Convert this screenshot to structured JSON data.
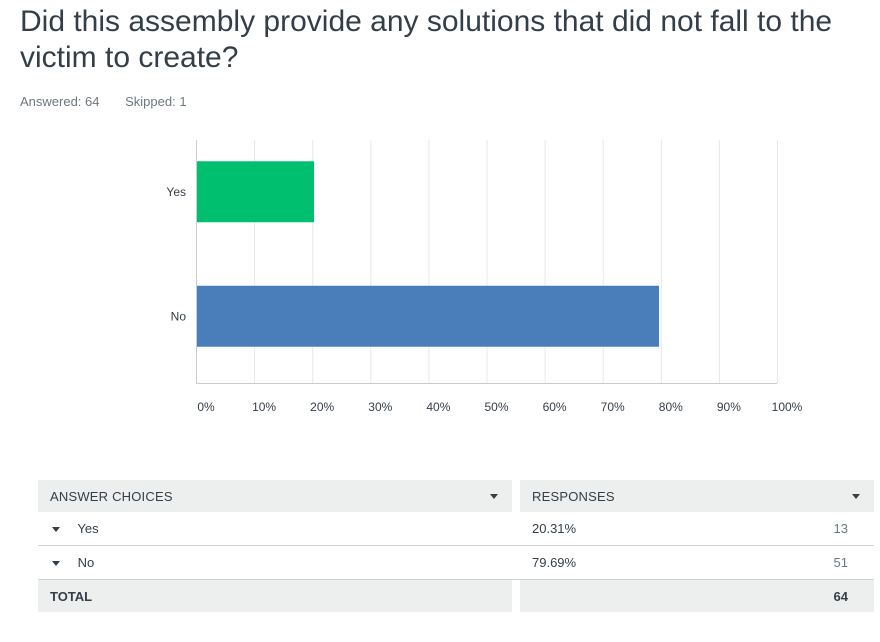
{
  "question": {
    "title": "Did this assembly provide any solutions that did not fall to the victim to create?",
    "answered_label": "Answered: 64",
    "skipped_label": "Skipped: 1"
  },
  "chart_data": {
    "type": "bar",
    "orientation": "horizontal",
    "categories": [
      "Yes",
      "No"
    ],
    "values": [
      20.31,
      79.69
    ],
    "colors": [
      "#00bf6f",
      "#4a7ebb"
    ],
    "xlim": [
      0,
      100
    ],
    "xticks": [
      "0%",
      "10%",
      "20%",
      "30%",
      "40%",
      "50%",
      "60%",
      "70%",
      "80%",
      "90%",
      "100%"
    ],
    "grid": true
  },
  "table": {
    "headers": {
      "choices": "ANSWER CHOICES",
      "responses": "RESPONSES"
    },
    "rows": [
      {
        "choice": "Yes",
        "percent": "20.31%",
        "count": "13"
      },
      {
        "choice": "No",
        "percent": "79.69%",
        "count": "51"
      }
    ],
    "total": {
      "label": "TOTAL",
      "count": "64"
    }
  }
}
